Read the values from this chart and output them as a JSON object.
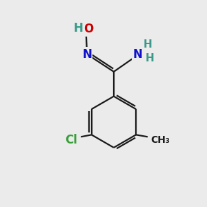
{
  "bg_color": "#ebebeb",
  "bond_color": "#1a1a1a",
  "bond_width": 1.6,
  "atom_colors": {
    "C": "#1a1a1a",
    "H": "#3a9a8a",
    "N": "#1010cc",
    "O": "#cc0000",
    "Cl": "#38a038"
  },
  "font_size": 11,
  "figsize": [
    3.0,
    3.0
  ],
  "dpi": 100,
  "xlim": [
    0,
    10
  ],
  "ylim": [
    0,
    10
  ]
}
